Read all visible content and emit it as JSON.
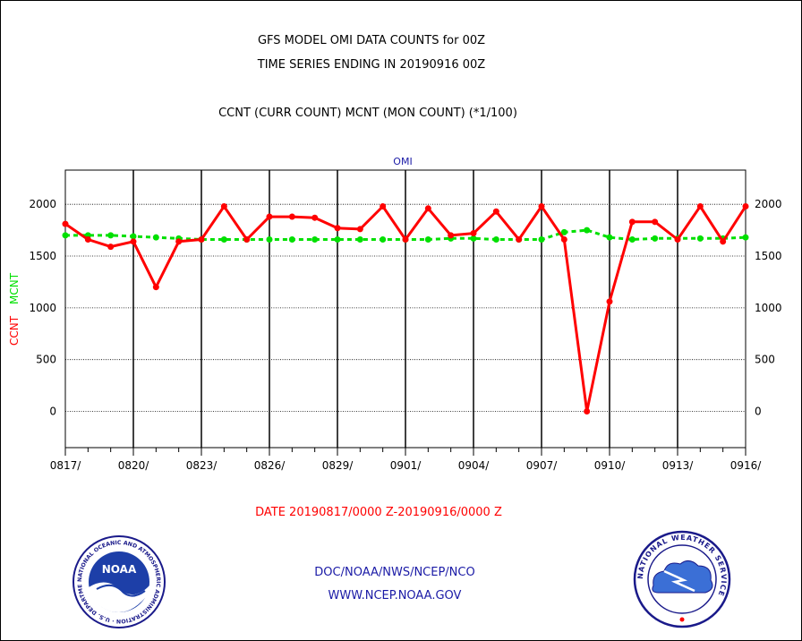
{
  "titles": {
    "line1": "GFS MODEL OMI DATA COUNTS for 00Z",
    "line2": "TIME SERIES ENDING IN 20190916 00Z",
    "line3": "CCNT (CURR COUNT) MCNT (MON COUNT) (*1/100)"
  },
  "footer": {
    "date_range": "DATE 20190817/0000 Z-20190916/0000 Z",
    "org_path": "DOC/NOAA/NWS/NCEP/NCO",
    "website": "WWW.NCEP.NOAA.GOV"
  },
  "logos": {
    "noaa_text": "NOAA",
    "noaa_ring": "NATIONAL OCEANIC AND ATMOSPHERIC ADMINISTRATION · U.S. DEPARTMENT OF COMMERCE",
    "nws_ring": "NATIONAL WEATHER SERVICE"
  },
  "chart_data": {
    "type": "line",
    "title": "OMI",
    "ylabel_ccnt": "CCNT",
    "ylabel_mcnt": "MCNT",
    "ylim": [
      -350,
      2330
    ],
    "yticks": [
      0,
      500,
      1000,
      1500,
      2000
    ],
    "xtick_labels": [
      "0817/",
      "0820/",
      "0823/",
      "0826/",
      "0829/",
      "0901/",
      "0904/",
      "0907/",
      "0910/",
      "0913/",
      "0916/"
    ],
    "x_count": 31,
    "grid": true,
    "colors": {
      "ccnt": "#ff0000",
      "mcnt": "#00e000"
    },
    "series": [
      {
        "key": "ccnt",
        "values": [
          1810,
          1660,
          1590,
          1640,
          1200,
          1640,
          1660,
          1980,
          1660,
          1880,
          1880,
          1870,
          1770,
          1760,
          1980,
          1660,
          1960,
          1700,
          1720,
          1930,
          1660,
          1980,
          1660,
          0,
          1060,
          1830,
          1830,
          1660,
          1980,
          1640,
          1980
        ]
      },
      {
        "key": "mcnt",
        "values": [
          1700,
          1700,
          1700,
          1690,
          1680,
          1670,
          1660,
          1660,
          1660,
          1660,
          1660,
          1660,
          1660,
          1660,
          1660,
          1660,
          1660,
          1670,
          1670,
          1660,
          1660,
          1660,
          1730,
          1750,
          1680,
          1660,
          1670,
          1670,
          1670,
          1670,
          1680
        ]
      }
    ]
  }
}
